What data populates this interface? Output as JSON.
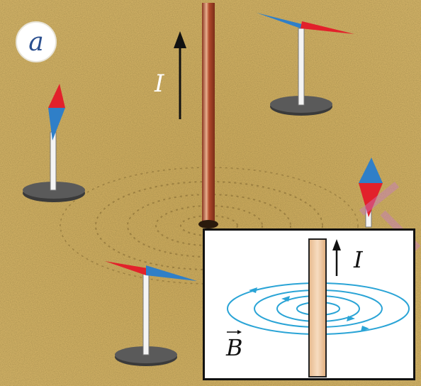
{
  "figure": {
    "panel_label": "a",
    "current_label": "I",
    "inset": {
      "current_label": "I",
      "field_label": "B"
    }
  },
  "colors": {
    "sand": "#c9a95a",
    "wire": "#b24a2c",
    "needle_red": "#e2212b",
    "needle_blue": "#2f7fc8",
    "field_lines": "#2aa4d6",
    "rod": "#f2c9a0"
  }
}
